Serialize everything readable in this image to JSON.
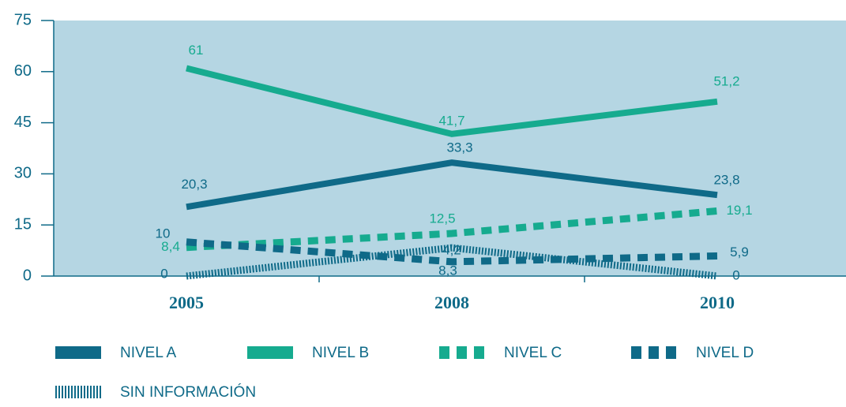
{
  "chart_data": {
    "type": "line",
    "categories": [
      "2005",
      "2008",
      "2010"
    ],
    "ylim": [
      0,
      75
    ],
    "yticks": [
      0,
      15,
      30,
      45,
      60,
      75
    ],
    "series": [
      {
        "name": "NIVEL A",
        "color": "#0f6a88",
        "style": "solid",
        "values": [
          20.3,
          33.3,
          23.8
        ],
        "value_labels": [
          "20,3",
          "33,3",
          "23,8"
        ]
      },
      {
        "name": "NIVEL B",
        "color": "#16ab8f",
        "style": "solid",
        "values": [
          61,
          41.7,
          51.2
        ],
        "value_labels": [
          "61",
          "41,7",
          "51,2"
        ]
      },
      {
        "name": "NIVEL C",
        "color": "#16ab8f",
        "style": "dashed",
        "values": [
          8.4,
          12.5,
          19.1
        ],
        "value_labels": [
          "8,4",
          "12,5",
          "19,1"
        ]
      },
      {
        "name": "NIVEL D",
        "color": "#0f6a88",
        "style": "dashed",
        "values": [
          10,
          4.2,
          5.9
        ],
        "value_labels": [
          "10",
          "4,2",
          "5,9"
        ]
      },
      {
        "name": "SIN INFORMACIÓN",
        "color": "#0f6a88",
        "style": "striped",
        "values": [
          0,
          8.3,
          0
        ],
        "value_labels": [
          "0",
          "8,3",
          "0"
        ]
      }
    ]
  }
}
